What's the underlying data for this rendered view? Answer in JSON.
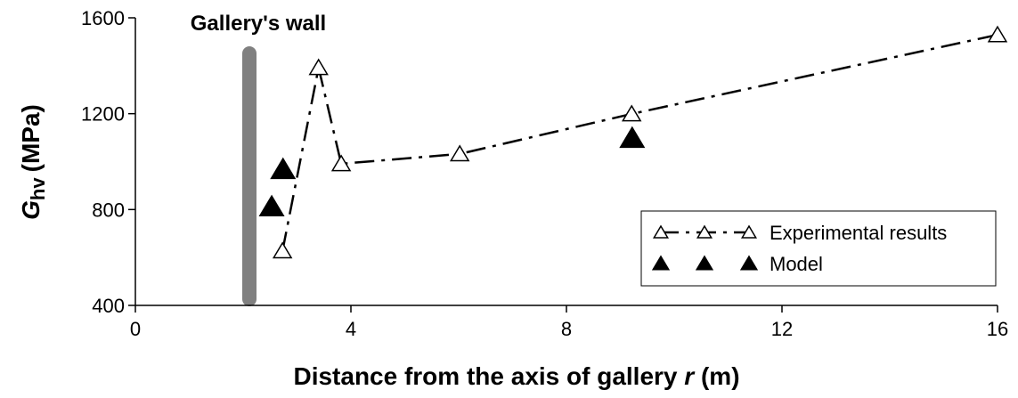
{
  "chart_data": {
    "type": "line",
    "xlabel": [
      "Distance from the axis of gallery",
      "r",
      "(m)"
    ],
    "ylabel": [
      "G",
      "hv",
      "(MPa)"
    ],
    "annotation": "Gallery's wall",
    "xlim": [
      0,
      16
    ],
    "xticks": [
      0,
      4,
      8,
      12,
      16
    ],
    "ylim": [
      400,
      1600
    ],
    "yticks": [
      400,
      800,
      1200,
      1600
    ],
    "series": [
      {
        "name": "Experimental results",
        "color": "#000000",
        "line": "dash-dot",
        "marker": "open-triangle",
        "x": [
          2.73,
          3.4,
          3.82,
          6.02,
          9.21,
          16.0
        ],
        "values": [
          627,
          1392,
          991,
          1032,
          1199,
          1529
        ]
      },
      {
        "name": "Model",
        "color": "#000000",
        "line": "none",
        "marker": "filled-triangle",
        "x": [
          2.53,
          2.74,
          9.22
        ],
        "values": [
          812,
          968,
          1098
        ]
      }
    ]
  }
}
